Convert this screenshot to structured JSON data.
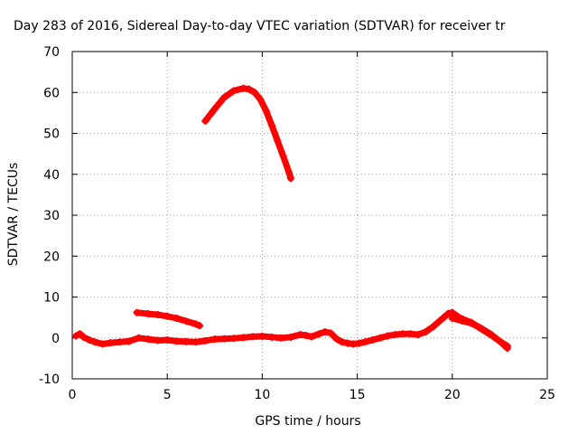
{
  "chart_data": {
    "type": "line",
    "title": "Day 283 of 2016, Sidereal Day-to-day VTEC variation (SDTVAR) for receiver tr",
    "xlabel": "GPS time / hours",
    "ylabel": "SDTVAR / TECUs",
    "xlim": [
      0,
      25
    ],
    "ylim": [
      -10,
      70
    ],
    "xticks": [
      "0",
      "5",
      "10",
      "15",
      "20",
      "25"
    ],
    "yticks": [
      "-10",
      "0",
      "10",
      "20",
      "30",
      "40",
      "50",
      "60",
      "70"
    ],
    "grid": true,
    "legend": "none",
    "series_color": "#ff0000",
    "series": [
      {
        "x": [
          7.0,
          7.5,
          8.0,
          8.5,
          9.0,
          9.3,
          9.6,
          9.9,
          10.2,
          10.5,
          10.8,
          11.1,
          11.4,
          11.5
        ],
        "y": [
          53,
          56,
          58.8,
          60.4,
          61,
          60.8,
          60,
          58.3,
          55.5,
          52,
          48.2,
          44.5,
          40.5,
          39
        ]
      },
      {
        "x": [
          3.4,
          4.0,
          4.5,
          5.0,
          5.5,
          6.0,
          6.5,
          6.7
        ],
        "y": [
          6.2,
          5.9,
          5.7,
          5.3,
          4.8,
          4.1,
          3.4,
          3.0
        ]
      },
      {
        "x": [
          0.2,
          0.4,
          0.6,
          0.9,
          1.2,
          1.6,
          2.0,
          2.5,
          3.0,
          3.5,
          4.0,
          4.5,
          5.0,
          5.5,
          6.0,
          6.5,
          7.0,
          7.5,
          8.0,
          8.5,
          9.0,
          9.5,
          10.0,
          10.5,
          11.0,
          11.5,
          12.0,
          12.3,
          12.6,
          13.0,
          13.3,
          13.6,
          13.9,
          14.2,
          14.5,
          14.8,
          15.1,
          15.4,
          15.8,
          16.2,
          16.6,
          17.0,
          17.4,
          17.8,
          18.2,
          18.6,
          19.0,
          19.3,
          19.6,
          19.8,
          20.0,
          20.3,
          20.6,
          21.0,
          21.4,
          21.8,
          22.2,
          22.6,
          22.9
        ],
        "y": [
          0.5,
          1.0,
          0.2,
          -0.5,
          -1.0,
          -1.5,
          -1.2,
          -1.0,
          -0.8,
          0.0,
          -0.3,
          -0.6,
          -0.5,
          -0.8,
          -0.9,
          -1.0,
          -0.7,
          -0.3,
          -0.2,
          -0.1,
          0.1,
          0.3,
          0.4,
          0.2,
          0.0,
          0.2,
          0.8,
          0.6,
          0.3,
          1.0,
          1.5,
          1.2,
          -0.2,
          -1.0,
          -1.3,
          -1.5,
          -1.3,
          -1.0,
          -0.5,
          0.0,
          0.5,
          0.8,
          1.0,
          1.0,
          0.8,
          1.5,
          2.8,
          4.0,
          5.2,
          6.0,
          6.2,
          5.2,
          4.5,
          3.8,
          2.6,
          1.4,
          0.2,
          -1.2,
          -2.5
        ]
      },
      {
        "x": [
          20.0,
          20.5,
          21.0,
          21.5,
          22.0,
          22.5,
          22.9
        ],
        "y": [
          4.8,
          4.2,
          3.6,
          2.4,
          1.0,
          -0.8,
          -2.0
        ]
      }
    ]
  }
}
